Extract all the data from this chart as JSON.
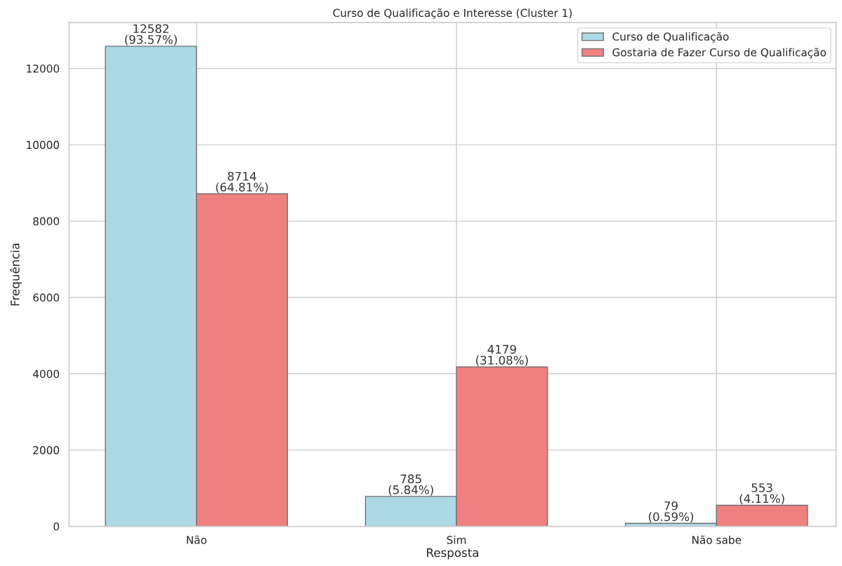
{
  "chart_data": {
    "type": "bar",
    "title": "Curso de Qualificação e Interesse (Cluster 1)",
    "xlabel": "Resposta",
    "ylabel": "Frequência",
    "categories": [
      "Não",
      "Sim",
      "Não sabe"
    ],
    "series": [
      {
        "name": "Curso de Qualificação",
        "color": "#add8e6",
        "values": [
          12582,
          785,
          79
        ],
        "value_labels": [
          "12582\n(93.57%)",
          "785\n(5.84%)",
          "79\n(0.59%)"
        ]
      },
      {
        "name": "Gostaria de Fazer Curso de Qualificação",
        "color": "#f08080",
        "values": [
          8714,
          4179,
          553
        ],
        "value_labels": [
          "8714\n(64.81%)",
          "4179\n(31.08%)",
          "553\n(4.11%)"
        ]
      }
    ],
    "ylim": [
      0,
      13200
    ],
    "yticks": [
      0,
      2000,
      4000,
      6000,
      8000,
      10000,
      12000
    ],
    "grid": true,
    "legend": "top right"
  }
}
